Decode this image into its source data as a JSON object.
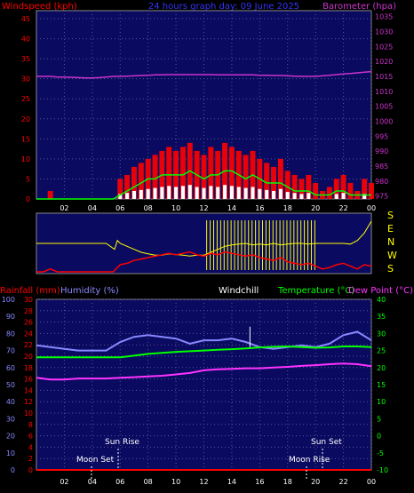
{
  "header": {
    "title": "24 hours graph day: 09 June 2025",
    "left_label": "Windspeed (kph)",
    "right_label": "Barometer (hpa)"
  },
  "wind_dir_labels": [
    "S",
    "E",
    "N",
    "W",
    "S"
  ],
  "bottom_headers": {
    "rainfall": "Rainfall (mm)",
    "humidity": "Humidity (%)",
    "windchill": "Windchill",
    "temperature": "Temperature (°C)",
    "dewpoint": "Dew Point (°C)"
  },
  "annotations": {
    "sun_rise": "Sun Rise",
    "sun_set": "Sun Set",
    "moon_set": "Moon Set",
    "moon_rise": "Moon Rise"
  },
  "colors": {
    "plot_bg": "#0a0a60",
    "windspeed": "#ff0000",
    "windgust": "#ffffff",
    "wind_avg": "#00ff00",
    "barometer": "#cc33cc",
    "wind_dir": "#ffff00",
    "humidity": "#8888ff",
    "temperature": "#00ff00",
    "dewpoint": "#ff33ff",
    "rainfall": "#ff0000"
  },
  "chart_data": [
    {
      "type": "line",
      "name": "wind-barometer",
      "x_ticks": [
        "02",
        "04",
        "06",
        "08",
        "10",
        "12",
        "14",
        "16",
        "18",
        "20",
        "22",
        "00"
      ],
      "x": [
        0,
        0.5,
        1,
        1.5,
        2,
        2.5,
        3,
        3.5,
        4,
        4.5,
        5,
        5.5,
        6,
        6.5,
        7,
        7.5,
        8,
        8.5,
        9,
        9.5,
        10,
        10.5,
        11,
        11.5,
        12,
        12.5,
        13,
        13.5,
        14,
        14.5,
        15,
        15.5,
        16,
        16.5,
        17,
        17.5,
        18,
        18.5,
        19,
        19.5,
        20,
        20.5,
        21,
        21.5,
        22,
        22.5,
        23,
        23.5,
        24
      ],
      "y_left_ticks": [
        "0",
        "5",
        "10",
        "15",
        "20",
        "25",
        "30",
        "35",
        "40",
        "45"
      ],
      "ylim_left": [
        0,
        47
      ],
      "y_right_ticks": [
        "975",
        "980",
        "985",
        "990",
        "995",
        "1000",
        "1005",
        "1010",
        "1015",
        "1020",
        "1025",
        "1030",
        "1035"
      ],
      "ylim_right": [
        974,
        1037
      ],
      "series": [
        {
          "key": "windspeed",
          "values": [
            0,
            0,
            2,
            0,
            0,
            0,
            0,
            0,
            0,
            0,
            0,
            0,
            5,
            6,
            8,
            9,
            10,
            11,
            12,
            13,
            12,
            13,
            14,
            12,
            11,
            13,
            12,
            14,
            13,
            12,
            11,
            12,
            10,
            9,
            8,
            10,
            7,
            6,
            5,
            6,
            4,
            2,
            3,
            5,
            6,
            4,
            2,
            5,
            4
          ]
        },
        {
          "key": "wind_avg",
          "values": [
            0,
            0,
            0,
            0,
            0,
            0,
            0,
            0,
            0,
            0,
            0,
            0,
            1,
            2,
            3,
            4,
            5,
            5,
            6,
            6,
            6,
            6,
            7,
            6,
            5,
            6,
            6,
            7,
            7,
            6,
            5,
            6,
            5,
            4,
            4,
            4,
            3,
            2,
            2,
            2,
            1,
            1,
            1,
            2,
            2,
            1,
            1,
            1,
            1
          ]
        },
        {
          "key": "barometer",
          "values": [
            1015,
            1015,
            1015,
            1014.8,
            1014.8,
            1014.7,
            1014.6,
            1014.5,
            1014.5,
            1014.6,
            1014.8,
            1015,
            1015,
            1015.1,
            1015.2,
            1015.3,
            1015.4,
            1015.5,
            1015.5,
            1015.6,
            1015.6,
            1015.6,
            1015.6,
            1015.6,
            1015.6,
            1015.6,
            1015.5,
            1015.5,
            1015.5,
            1015.5,
            1015.5,
            1015.5,
            1015.4,
            1015.4,
            1015.3,
            1015.3,
            1015.2,
            1015.1,
            1015,
            1015,
            1015,
            1015.2,
            1015.4,
            1015.6,
            1015.8,
            1016,
            1016.2,
            1016.4,
            1016.6
          ]
        }
      ]
    },
    {
      "type": "line",
      "name": "wind-direction",
      "y_labels": [
        "S",
        "E",
        "N",
        "W",
        "S"
      ],
      "x": [
        0,
        1,
        2,
        3,
        4,
        5,
        5.6,
        5.8,
        6,
        6.5,
        7,
        7.5,
        8,
        8.5,
        9,
        9.5,
        10,
        10.5,
        11,
        11.5,
        12,
        12.5,
        13,
        13.5,
        14,
        14.5,
        15,
        15.5,
        16,
        16.5,
        17,
        17.5,
        18,
        18.5,
        19,
        19.5,
        20,
        20.5,
        21,
        21.5,
        22,
        22.5,
        23,
        23.5,
        24
      ],
      "values_deg": [
        180,
        180,
        180,
        180,
        180,
        180,
        140,
        200,
        180,
        160,
        140,
        120,
        110,
        100,
        100,
        110,
        105,
        100,
        95,
        100,
        100,
        120,
        140,
        160,
        170,
        175,
        180,
        170,
        175,
        170,
        180,
        170,
        175,
        180,
        180,
        175,
        180,
        180,
        180,
        180,
        180,
        175,
        200,
        250,
        330
      ]
    },
    {
      "type": "line",
      "name": "temp-humidity",
      "x_ticks": [
        "02",
        "04",
        "06",
        "08",
        "10",
        "12",
        "14",
        "16",
        "18",
        "20",
        "22",
        "00"
      ],
      "x": [
        0,
        1,
        2,
        3,
        4,
        5,
        6,
        7,
        8,
        9,
        10,
        11,
        12,
        13,
        14,
        15,
        16,
        17,
        18,
        19,
        20,
        21,
        22,
        23,
        24
      ],
      "y_humidity_ticks": [
        "0",
        "10",
        "20",
        "30",
        "40",
        "50",
        "60",
        "70",
        "80",
        "90",
        "100"
      ],
      "ylim_humidity": [
        0,
        100
      ],
      "y_rain_ticks": [
        "0",
        "2",
        "4",
        "6",
        "8",
        "10",
        "12",
        "14",
        "16",
        "18",
        "20",
        "22",
        "24",
        "26",
        "28",
        "30"
      ],
      "ylim_rain": [
        0,
        30
      ],
      "y_temp_ticks": [
        "-10",
        "-5",
        "0",
        "5",
        "10",
        "15",
        "20",
        "25",
        "30",
        "35",
        "40"
      ],
      "ylim_temp": [
        -10,
        40
      ],
      "series": [
        {
          "key": "humidity",
          "values": [
            73,
            72,
            71,
            70,
            70,
            70,
            75,
            78,
            79,
            78,
            77,
            74,
            76,
            76,
            77,
            75,
            72,
            71,
            72,
            73,
            72,
            74,
            79,
            81,
            76
          ]
        },
        {
          "key": "temperature",
          "values": [
            23,
            23,
            23,
            23,
            23,
            23,
            23,
            23.5,
            24,
            24.3,
            24.6,
            24.8,
            25,
            25.2,
            25.4,
            25.6,
            25.9,
            26.1,
            26.2,
            26,
            25.8,
            25.9,
            26.2,
            26.2,
            26
          ]
        },
        {
          "key": "dewpoint",
          "values": [
            17,
            16.5,
            16.5,
            16.8,
            16.8,
            16.8,
            17,
            17.2,
            17.4,
            17.6,
            18,
            18.4,
            19.2,
            19.5,
            19.6,
            19.8,
            19.8,
            20,
            20.2,
            20.5,
            20.7,
            21,
            21.2,
            21,
            20.4
          ]
        },
        {
          "key": "rainfall",
          "values": [
            0,
            0,
            0,
            0,
            0,
            0,
            0,
            0,
            0,
            0,
            0,
            0,
            0,
            0,
            0,
            0,
            0,
            0,
            0,
            0,
            0,
            0,
            0,
            0,
            0
          ]
        }
      ]
    }
  ]
}
